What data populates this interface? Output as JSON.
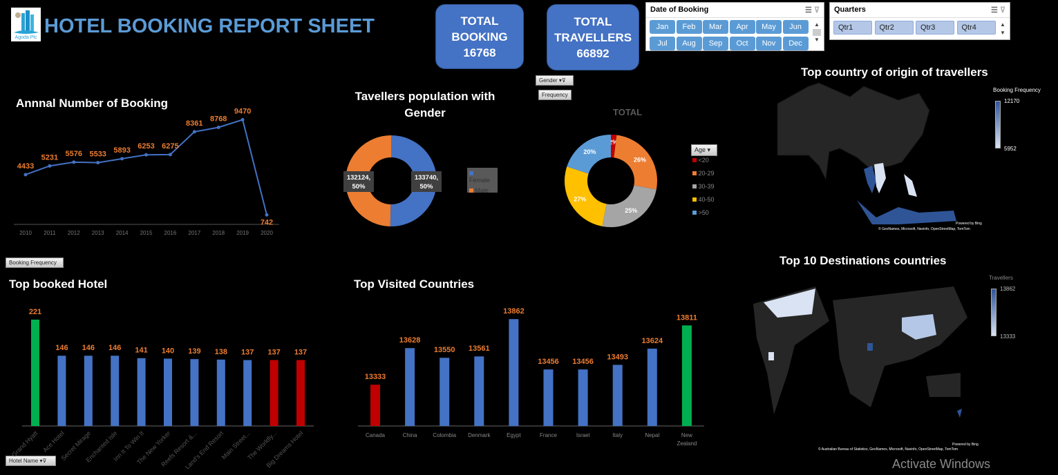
{
  "header": {
    "logo_text": "Agoda Plc",
    "title": "HOTEL BOOKING REPORT SHEET"
  },
  "kpis": {
    "total_booking_label": "TOTAL BOOKING",
    "total_booking_value": "16768",
    "total_travellers_label": "TOTAL TRAVELLERS",
    "total_travellers_value": "66892"
  },
  "date_slicer": {
    "title": "Date of Booking",
    "months": [
      "Jan",
      "Feb",
      "Mar",
      "Apr",
      "May",
      "Jun",
      "Jul",
      "Aug",
      "Sep",
      "Oct",
      "Nov",
      "Dec"
    ]
  },
  "quarter_slicer": {
    "title": "Quarters",
    "quarters": [
      "Qtr1",
      "Qtr2",
      "Qtr3",
      "Qtr4"
    ]
  },
  "fields": {
    "gender": "Gender",
    "frequency": "Frequency",
    "booking_frequency": "Booking Frequency",
    "hotel_name": "Hotel Name",
    "age": "Age"
  },
  "colors": {
    "accent": "#4472c4",
    "orange": "#ed7d31",
    "green": "#00b050",
    "red": "#c00000",
    "title_blue": "#5b9bd5"
  },
  "chart_data": [
    {
      "type": "line",
      "title": "Annnal Number of Booking",
      "categories": [
        "2010",
        "2011",
        "2012",
        "2013",
        "2014",
        "2015",
        "2016",
        "2017",
        "2018",
        "2019",
        "2020"
      ],
      "values": [
        4433,
        5231,
        5576,
        5533,
        5893,
        6253,
        6275,
        8361,
        8768,
        9470,
        742
      ],
      "color": "#4472c4",
      "label_color": "#ed7d31"
    },
    {
      "type": "pie",
      "title": "Tavellers population with Gender",
      "donut": true,
      "slices": [
        {
          "name": "Female",
          "value": 133740,
          "label": "133740, 50%",
          "color": "#4472c4"
        },
        {
          "name": "Male",
          "value": 132124,
          "label": "132124, 50%",
          "color": "#ed7d31"
        }
      ]
    },
    {
      "type": "pie",
      "title": "TOTAL",
      "donut": true,
      "legend_title": "Age",
      "slices": [
        {
          "name": "<20",
          "value": 2,
          "label": "2%",
          "color": "#c00000"
        },
        {
          "name": "20-29",
          "value": 26,
          "label": "26%",
          "color": "#ed7d31"
        },
        {
          "name": "30-39",
          "value": 25,
          "label": "25%",
          "color": "#a5a5a5"
        },
        {
          "name": "40-50",
          "value": 27,
          "label": "27%",
          "color": "#ffc000"
        },
        {
          "name": ">50",
          "value": 20,
          "label": "20%",
          "color": "#5b9bd5"
        }
      ]
    },
    {
      "type": "bar",
      "title": "Top booked Hotel",
      "categories": [
        "Grand Hyatt",
        "Ace Hotel",
        "Secret Mirage",
        "Enchanted Isle",
        "Inn It To Win It",
        "The New Yorker",
        "Reefs Resort &...",
        "Land's End Resort",
        "Main Street...",
        "The Worldly...",
        "Big Dreams Hotel"
      ],
      "values": [
        221,
        146,
        146,
        146,
        141,
        140,
        139,
        138,
        137,
        137,
        137
      ],
      "colors": [
        "#00b050",
        "#4472c4",
        "#4472c4",
        "#4472c4",
        "#4472c4",
        "#4472c4",
        "#4472c4",
        "#4472c4",
        "#4472c4",
        "#c00000",
        "#c00000"
      ],
      "ylim": [
        0,
        240
      ]
    },
    {
      "type": "bar",
      "title": "Top Visited Countries",
      "categories": [
        "Canada",
        "China",
        "Colombia",
        "Denmark",
        "Egypt",
        "France",
        "Israel",
        "Italy",
        "Nepal",
        "New Zealand"
      ],
      "values": [
        13333,
        13628,
        13550,
        13561,
        13862,
        13456,
        13456,
        13493,
        13624,
        13811
      ],
      "colors": [
        "#c00000",
        "#4472c4",
        "#4472c4",
        "#4472c4",
        "#4472c4",
        "#4472c4",
        "#4472c4",
        "#4472c4",
        "#4472c4",
        "#00b050"
      ],
      "ylim": [
        13000,
        13900
      ]
    }
  ],
  "maps": {
    "origin": {
      "title": "Top country of origin of travellers",
      "legend_title": "Booking Frequency",
      "max": "12170",
      "min": "5952",
      "credit1": "Powered by Bing",
      "credit2": "© GeoNames, Microsoft, Navinfo, OpenStreetMap, TomTom"
    },
    "destinations": {
      "title": "Top 10 Destinations countries",
      "legend_title": "Travellers",
      "max": "13862",
      "min": "13333",
      "credit1": "Powered by Bing",
      "credit2": "© Australian Bureau of Statistics, GeoNames, Microsoft, Navinfo, OpenStreetMap, TomTom"
    }
  },
  "watermark": "Activate Windows"
}
